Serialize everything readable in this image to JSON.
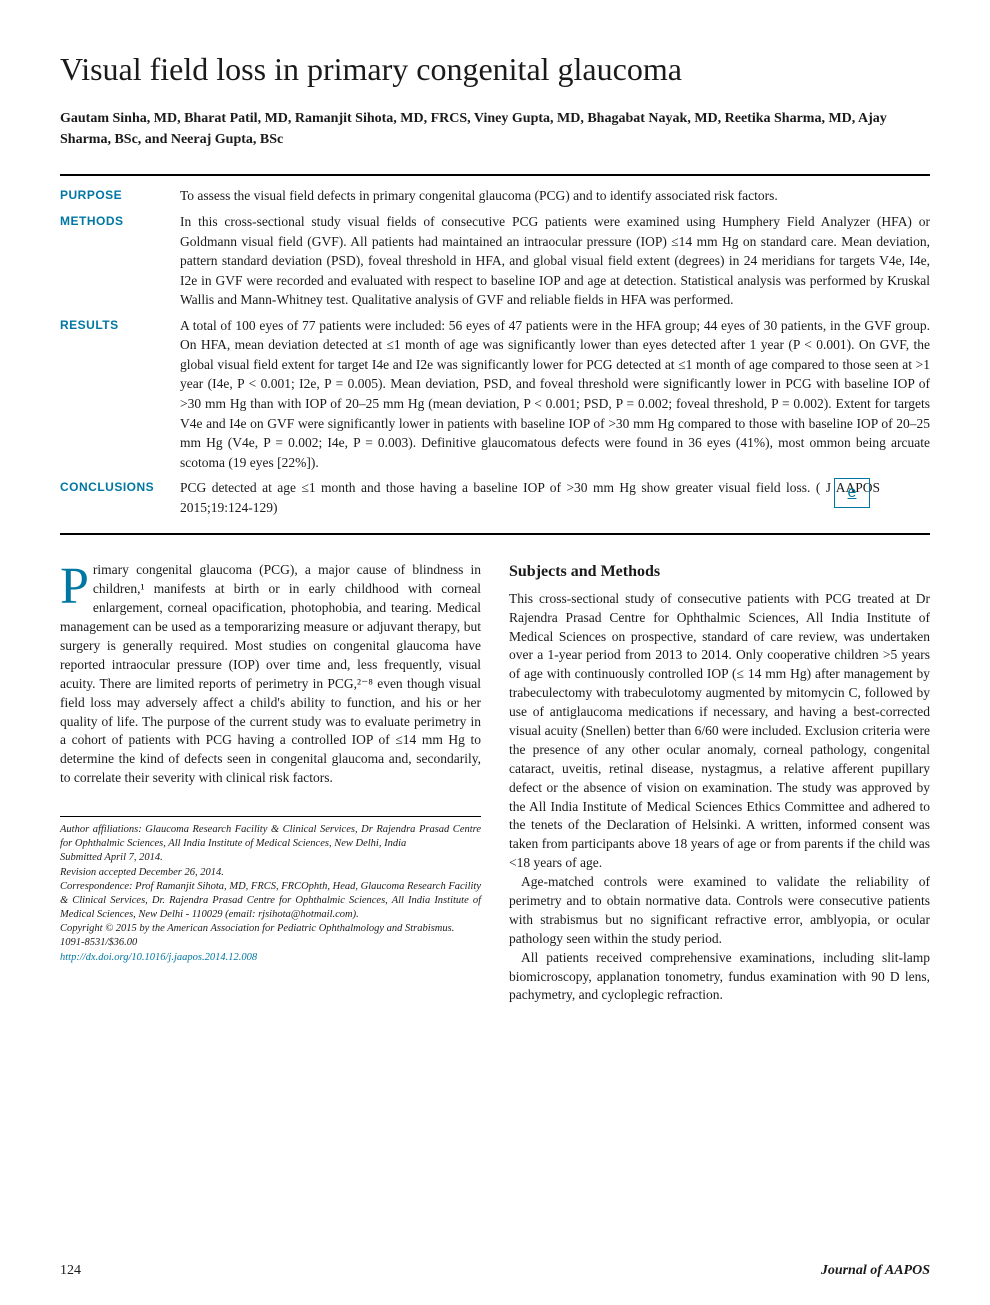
{
  "title": "Visual field loss in primary congenital glaucoma",
  "authors": "Gautam Sinha, MD, Bharat Patil, MD, Ramanjit Sihota, MD, FRCS, Viney Gupta, MD, Bhagabat Nayak, MD, Reetika Sharma, MD, Ajay Sharma, BSc, and Neeraj Gupta, BSc",
  "abstract": {
    "purpose_label": "PURPOSE",
    "purpose": "To assess the visual field defects in primary congenital glaucoma (PCG) and to identify associated risk factors.",
    "methods_label": "METHODS",
    "methods": "In this cross-sectional study visual fields of consecutive PCG patients were examined using Humphery Field Analyzer (HFA) or Goldmann visual field (GVF). All patients had maintained an intraocular pressure (IOP) ≤14 mm Hg on standard care. Mean deviation, pattern standard deviation (PSD), foveal threshold in HFA, and global visual field extent (degrees) in 24 meridians for targets V4e, I4e, I2e in GVF were recorded and evaluated with respect to baseline IOP and age at detection. Statistical analysis was performed by Kruskal Wallis and Mann-Whitney test. Qualitative analysis of GVF and reliable fields in HFA was performed.",
    "results_label": "RESULTS",
    "results": "A total of 100 eyes of 77 patients were included: 56 eyes of 47 patients were in the HFA group; 44 eyes of 30 patients, in the GVF group. On HFA, mean deviation detected at ≤1 month of age was significantly lower than eyes detected after 1 year (P < 0.001). On GVF, the global visual field extent for target I4e and I2e was significantly lower for PCG detected at ≤1 month of age compared to those seen at >1 year (I4e, P < 0.001; I2e, P = 0.005). Mean deviation, PSD, and foveal threshold were significantly lower in PCG with baseline IOP of >30 mm Hg than with IOP of 20–25 mm Hg (mean deviation, P < 0.001; PSD, P = 0.002; foveal threshold, P = 0.002). Extent for targets V4e and I4e on GVF were significantly lower in patients with baseline IOP of >30 mm Hg compared to those with baseline IOP of 20–25 mm Hg (V4e, P = 0.002; I4e, P = 0.003). Definitive glaucomatous defects were found in 36 eyes (41%), most ommon being arcuate scotoma (19 eyes [22%]).",
    "conclusions_label": "CONCLUSIONS",
    "conclusions": "PCG detected at age ≤1 month and those having a baseline IOP of >30 mm Hg show greater visual field loss.    ( J AAPOS 2015;19:124-129)"
  },
  "colors": {
    "accent": "#0077a3",
    "text": "#1a1a1a",
    "background": "#ffffff",
    "rule": "#000000"
  },
  "body_left": {
    "dropcap": "P",
    "first_para": "rimary congenital glaucoma (PCG), a major cause of blindness in children,¹ manifests at birth or in early childhood with corneal enlargement, corneal opacification, photophobia, and tearing. Medical management can be used as a temporarizing measure or adjuvant therapy, but surgery is generally required. Most studies on congenital glaucoma have reported intraocular pressure (IOP) over time and, less frequently, visual acuity. There are limited reports of perimetry in PCG,²⁻⁸ even though visual field loss may adversely affect a child's ability to function, and his or her quality of life. The purpose of the current study was to evaluate perimetry in a cohort of patients with PCG having a controlled IOP of ≤14 mm Hg to determine the kind of defects seen in congenital glaucoma and, secondarily, to correlate their severity with clinical risk factors."
  },
  "body_right": {
    "heading": "Subjects and Methods",
    "para1": "This cross-sectional study of consecutive patients with PCG treated at Dr Rajendra Prasad Centre for Ophthalmic Sciences, All India Institute of Medical Sciences on prospective, standard of care review, was undertaken over a 1-year period from 2013 to 2014. Only cooperative children >5 years of age with continuously controlled IOP (≤ 14 mm Hg) after management by trabeculectomy with trabeculotomy augmented by mitomycin C, followed by use of antiglaucoma medications if necessary, and having a best-corrected visual acuity (Snellen) better than 6/60 were included. Exclusion criteria were the presence of any other ocular anomaly, corneal pathology, congenital cataract, uveitis, retinal disease, nystagmus, a relative afferent pupillary defect or the absence of vision on examination. The study was approved by the All India Institute of Medical Sciences Ethics Committee and adhered to the tenets of the Declaration of Helsinki. A written, informed consent was taken from participants above 18 years of age or from parents if the child was <18 years of age.",
    "para2": "Age-matched controls were examined to validate the reliability of perimetry and to obtain normative data. Controls were consecutive patients with strabismus but no significant refractive error, amblyopia, or ocular pathology seen within the study period.",
    "para3": "All patients received comprehensive examinations, including slit-lamp biomicroscopy, applanation tonometry, fundus examination with 90 D lens, pachymetry, and cycloplegic refraction."
  },
  "footnotes": {
    "affil": "Author affiliations: Glaucoma Research Facility & Clinical Services, Dr Rajendra Prasad Centre for Ophthalmic Sciences, All India Institute of Medical Sciences, New Delhi, India",
    "submitted": "Submitted April 7, 2014.",
    "revision": "Revision accepted December 26, 2014.",
    "correspondence": "Correspondence: Prof Ramanjit Sihota, MD, FRCS, FRCOphth, Head, Glaucoma Research Facility & Clinical Services, Dr. Rajendra Prasad Centre for Ophthalmic Sciences, All India Institute of Medical Sciences, New Delhi - 110029 (email: rjsihota@hotmail.com).",
    "copyright": "Copyright © 2015 by the American Association for Pediatric Ophthalmology and Strabismus.",
    "issn": "1091-8531/$36.00",
    "doi": "http://dx.doi.org/10.1016/j.jaapos.2014.12.008"
  },
  "footer": {
    "page": "124",
    "journal": "Journal of AAPOS"
  },
  "e_icon_label": "e"
}
